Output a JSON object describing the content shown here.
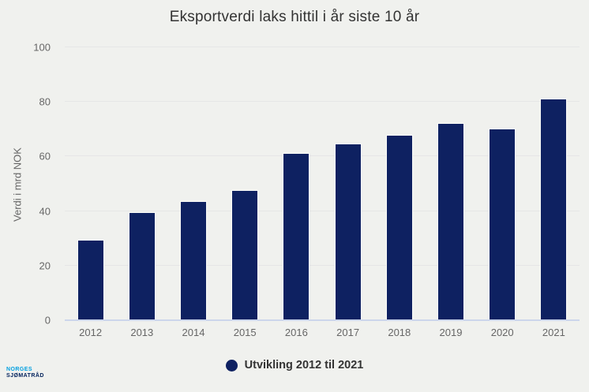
{
  "chart_data": {
    "type": "bar",
    "title": "Eksportverdi laks hittil i år siste 10 år",
    "xlabel": "",
    "ylabel": "Verdi i mrd NOK",
    "categories": [
      "2012",
      "2013",
      "2014",
      "2015",
      "2016",
      "2017",
      "2018",
      "2019",
      "2020",
      "2021"
    ],
    "values": [
      29.5,
      39.6,
      43.7,
      47.7,
      61.3,
      64.7,
      67.8,
      72.3,
      70.3,
      81.3
    ],
    "ylim": [
      0,
      100
    ],
    "yticks": [
      0,
      20,
      40,
      60,
      80,
      100
    ],
    "grid": true,
    "legend_position": "bottom"
  },
  "legend": {
    "label": "Utvikling 2012 til 2021"
  },
  "logo": {
    "line1": "NORGES",
    "line2": "SJØMATRÅD"
  },
  "colors": {
    "background": "#f0f1ee",
    "bar": "#0e2161",
    "bar_border": "#fafbf9",
    "gridline": "#e6e6e6",
    "axis_line": "#ccd6eb",
    "tick_label": "#666666",
    "title": "#333333",
    "legend_text": "#333333",
    "logo_blue": "#009fe0",
    "logo_navy": "#00205b"
  }
}
